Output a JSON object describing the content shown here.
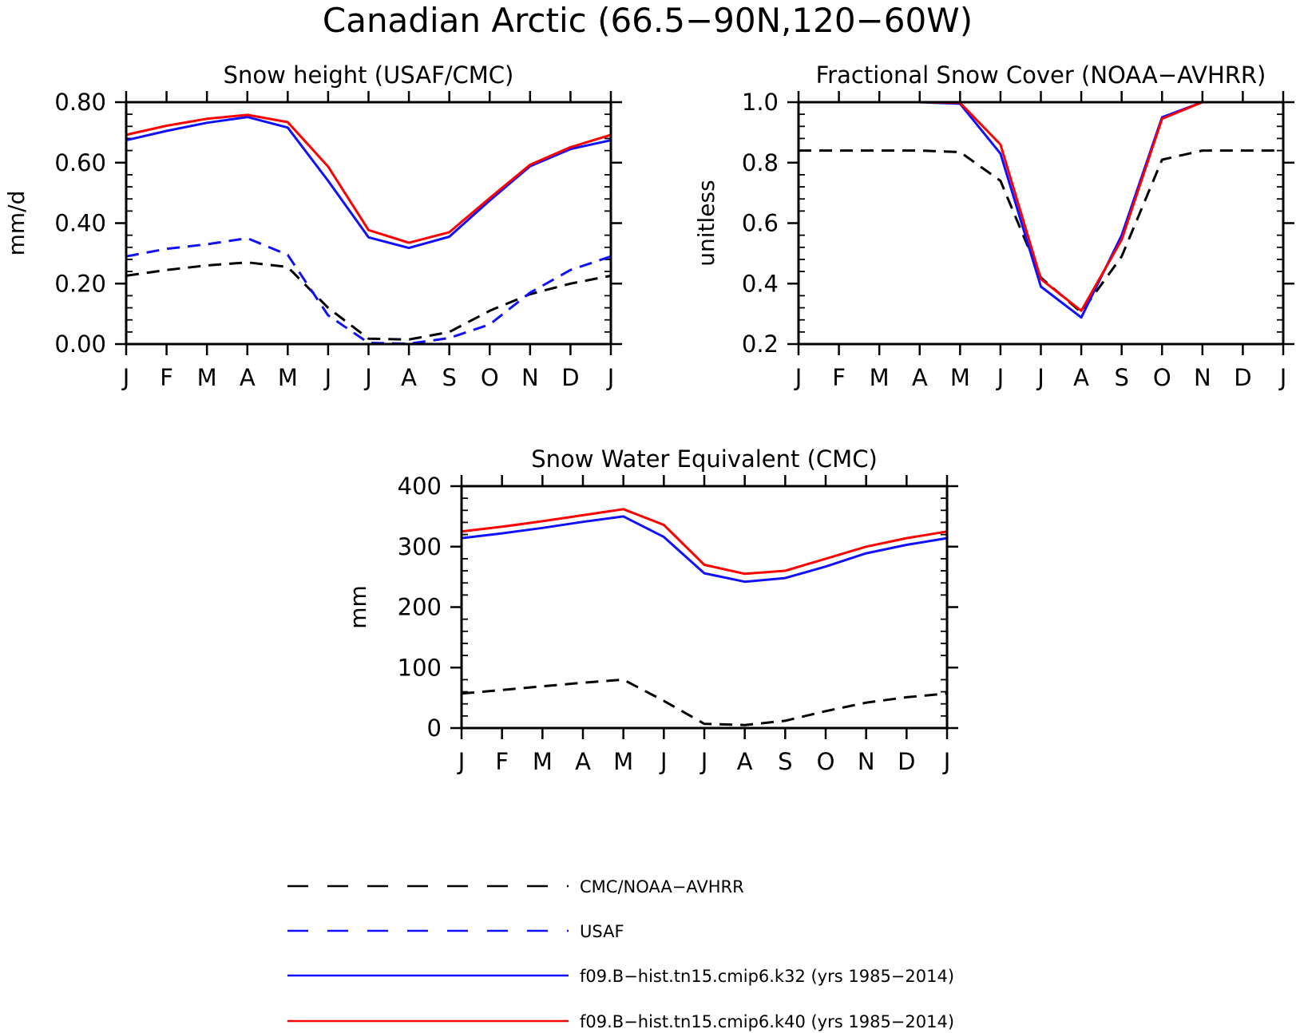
{
  "figure": {
    "title": "Canadian Arctic (66.5−90N,120−60W)"
  },
  "legend": [
    {
      "label": "CMC/NOAA−AVHRR",
      "color": "#000000",
      "style": "dashed"
    },
    {
      "label": "USAF",
      "color": "#1010ff",
      "style": "dashed"
    },
    {
      "label": "f09.B−hist.tn15.cmip6.k32 (yrs 1985−2014)",
      "color": "#1010ff",
      "style": "solid"
    },
    {
      "label": "f09.B−hist.tn15.cmip6.k40 (yrs 1985−2014)",
      "color": "#ff0000",
      "style": "solid"
    }
  ],
  "chart_data": [
    {
      "type": "line",
      "title": "Snow height (USAF/CMC)",
      "xlabel": "",
      "ylabel": "mm/d",
      "categories": [
        "J",
        "F",
        "M",
        "A",
        "M",
        "J",
        "J",
        "A",
        "S",
        "O",
        "N",
        "D",
        "J"
      ],
      "ylim": [
        0.0,
        0.8
      ],
      "yticks": [
        0.0,
        0.2,
        0.4,
        0.6,
        0.8
      ],
      "ytick_labels": [
        "0.00",
        "0.20",
        "0.40",
        "0.60",
        "0.80"
      ],
      "series": [
        {
          "name": "CMC/NOAA−AVHRR",
          "color": "#000000",
          "style": "dashed",
          "values": [
            0.226,
            0.245,
            0.26,
            0.27,
            0.255,
            0.12,
            0.018,
            0.015,
            0.04,
            0.11,
            0.165,
            0.2,
            0.226
          ]
        },
        {
          "name": "USAF",
          "color": "#1010ff",
          "style": "dashed",
          "values": [
            0.29,
            0.315,
            0.33,
            0.35,
            0.295,
            0.095,
            0.004,
            0.001,
            0.02,
            0.065,
            0.17,
            0.245,
            0.29
          ]
        },
        {
          "name": "f09.B−hist.tn15.cmip6.k32 (yrs 1985−2014)",
          "color": "#1010ff",
          "style": "solid",
          "values": [
            0.674,
            0.705,
            0.732,
            0.751,
            0.716,
            0.54,
            0.353,
            0.318,
            0.355,
            0.475,
            0.588,
            0.645,
            0.674
          ]
        },
        {
          "name": "f09.B−hist.tn15.cmip6.k40 (yrs 1985−2014)",
          "color": "#ff0000",
          "style": "solid",
          "values": [
            0.692,
            0.722,
            0.745,
            0.758,
            0.734,
            0.587,
            0.377,
            0.335,
            0.37,
            0.483,
            0.593,
            0.651,
            0.692
          ]
        }
      ]
    },
    {
      "type": "line",
      "title": "Fractional Snow Cover (NOAA−AVHRR)",
      "xlabel": "",
      "ylabel": "unitless",
      "categories": [
        "J",
        "F",
        "M",
        "A",
        "M",
        "J",
        "J",
        "A",
        "S",
        "O",
        "N",
        "D",
        "J"
      ],
      "ylim": [
        0.2,
        1.0
      ],
      "yticks": [
        0.2,
        0.4,
        0.6,
        0.8,
        1.0
      ],
      "ytick_labels": [
        "0.2",
        "0.4",
        "0.6",
        "0.8",
        "1.0"
      ],
      "series": [
        {
          "name": "CMC/NOAA−AVHRR",
          "color": "#000000",
          "style": "dashed",
          "values": [
            0.84,
            0.84,
            0.84,
            0.84,
            0.835,
            0.74,
            0.42,
            0.305,
            0.49,
            0.81,
            0.84,
            0.84,
            0.84
          ]
        },
        {
          "name": "f09.B−hist.tn15.cmip6.k32 (yrs 1985−2014)",
          "color": "#1010ff",
          "style": "solid",
          "values": [
            1.0,
            1.0,
            1.0,
            1.0,
            0.995,
            0.83,
            0.39,
            0.288,
            0.56,
            0.95,
            1.0,
            1.0,
            1.0
          ]
        },
        {
          "name": "f09.B−hist.tn15.cmip6.k40 (yrs 1985−2014)",
          "color": "#ff0000",
          "style": "solid",
          "values": [
            1.0,
            1.0,
            1.0,
            1.0,
            0.998,
            0.86,
            0.415,
            0.31,
            0.545,
            0.945,
            1.0,
            1.0,
            1.0
          ]
        }
      ]
    },
    {
      "type": "line",
      "title": "Snow Water Equivalent (CMC)",
      "xlabel": "",
      "ylabel": "mm",
      "categories": [
        "J",
        "F",
        "M",
        "A",
        "M",
        "J",
        "J",
        "A",
        "S",
        "O",
        "N",
        "D",
        "J"
      ],
      "ylim": [
        0,
        400
      ],
      "yticks": [
        0,
        100,
        200,
        300,
        400
      ],
      "ytick_labels": [
        "0",
        "100",
        "200",
        "300",
        "400"
      ],
      "series": [
        {
          "name": "CMC/NOAA−AVHRR",
          "color": "#000000",
          "style": "dashed",
          "values": [
            57,
            63,
            69,
            75,
            80,
            45,
            7,
            5,
            12,
            28,
            42,
            51,
            57
          ]
        },
        {
          "name": "f09.B−hist.tn15.cmip6.k32 (yrs 1985−2014)",
          "color": "#1010ff",
          "style": "solid",
          "values": [
            314,
            322,
            331,
            341,
            350,
            316,
            256,
            242,
            248,
            267,
            289,
            303,
            314
          ]
        },
        {
          "name": "f09.B−hist.tn15.cmip6.k40 (yrs 1985−2014)",
          "color": "#ff0000",
          "style": "solid",
          "values": [
            325,
            333,
            342,
            352,
            362,
            336,
            270,
            255,
            260,
            280,
            300,
            314,
            325
          ]
        }
      ]
    }
  ]
}
